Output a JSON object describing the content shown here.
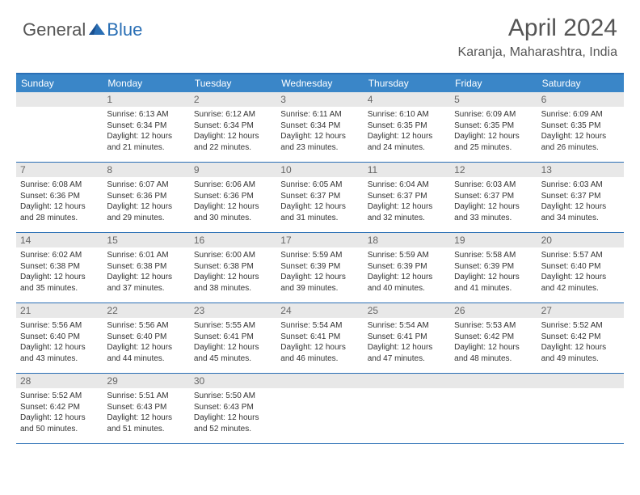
{
  "logo": {
    "general": "General",
    "blue": "Blue"
  },
  "header": {
    "title": "April 2024",
    "subtitle": "Karanja, Maharashtra, India"
  },
  "colors": {
    "header_bar": "#3a86c8",
    "week_border": "#2a6fb5",
    "daynum_bg": "#e8e8e8",
    "text": "#333333",
    "title_text": "#555555"
  },
  "weekdays": [
    "Sunday",
    "Monday",
    "Tuesday",
    "Wednesday",
    "Thursday",
    "Friday",
    "Saturday"
  ],
  "weeks": [
    [
      null,
      {
        "n": "1",
        "sunrise": "6:13 AM",
        "sunset": "6:34 PM",
        "dl": "12 hours and 21 minutes."
      },
      {
        "n": "2",
        "sunrise": "6:12 AM",
        "sunset": "6:34 PM",
        "dl": "12 hours and 22 minutes."
      },
      {
        "n": "3",
        "sunrise": "6:11 AM",
        "sunset": "6:34 PM",
        "dl": "12 hours and 23 minutes."
      },
      {
        "n": "4",
        "sunrise": "6:10 AM",
        "sunset": "6:35 PM",
        "dl": "12 hours and 24 minutes."
      },
      {
        "n": "5",
        "sunrise": "6:09 AM",
        "sunset": "6:35 PM",
        "dl": "12 hours and 25 minutes."
      },
      {
        "n": "6",
        "sunrise": "6:09 AM",
        "sunset": "6:35 PM",
        "dl": "12 hours and 26 minutes."
      }
    ],
    [
      {
        "n": "7",
        "sunrise": "6:08 AM",
        "sunset": "6:36 PM",
        "dl": "12 hours and 28 minutes."
      },
      {
        "n": "8",
        "sunrise": "6:07 AM",
        "sunset": "6:36 PM",
        "dl": "12 hours and 29 minutes."
      },
      {
        "n": "9",
        "sunrise": "6:06 AM",
        "sunset": "6:36 PM",
        "dl": "12 hours and 30 minutes."
      },
      {
        "n": "10",
        "sunrise": "6:05 AM",
        "sunset": "6:37 PM",
        "dl": "12 hours and 31 minutes."
      },
      {
        "n": "11",
        "sunrise": "6:04 AM",
        "sunset": "6:37 PM",
        "dl": "12 hours and 32 minutes."
      },
      {
        "n": "12",
        "sunrise": "6:03 AM",
        "sunset": "6:37 PM",
        "dl": "12 hours and 33 minutes."
      },
      {
        "n": "13",
        "sunrise": "6:03 AM",
        "sunset": "6:37 PM",
        "dl": "12 hours and 34 minutes."
      }
    ],
    [
      {
        "n": "14",
        "sunrise": "6:02 AM",
        "sunset": "6:38 PM",
        "dl": "12 hours and 35 minutes."
      },
      {
        "n": "15",
        "sunrise": "6:01 AM",
        "sunset": "6:38 PM",
        "dl": "12 hours and 37 minutes."
      },
      {
        "n": "16",
        "sunrise": "6:00 AM",
        "sunset": "6:38 PM",
        "dl": "12 hours and 38 minutes."
      },
      {
        "n": "17",
        "sunrise": "5:59 AM",
        "sunset": "6:39 PM",
        "dl": "12 hours and 39 minutes."
      },
      {
        "n": "18",
        "sunrise": "5:59 AM",
        "sunset": "6:39 PM",
        "dl": "12 hours and 40 minutes."
      },
      {
        "n": "19",
        "sunrise": "5:58 AM",
        "sunset": "6:39 PM",
        "dl": "12 hours and 41 minutes."
      },
      {
        "n": "20",
        "sunrise": "5:57 AM",
        "sunset": "6:40 PM",
        "dl": "12 hours and 42 minutes."
      }
    ],
    [
      {
        "n": "21",
        "sunrise": "5:56 AM",
        "sunset": "6:40 PM",
        "dl": "12 hours and 43 minutes."
      },
      {
        "n": "22",
        "sunrise": "5:56 AM",
        "sunset": "6:40 PM",
        "dl": "12 hours and 44 minutes."
      },
      {
        "n": "23",
        "sunrise": "5:55 AM",
        "sunset": "6:41 PM",
        "dl": "12 hours and 45 minutes."
      },
      {
        "n": "24",
        "sunrise": "5:54 AM",
        "sunset": "6:41 PM",
        "dl": "12 hours and 46 minutes."
      },
      {
        "n": "25",
        "sunrise": "5:54 AM",
        "sunset": "6:41 PM",
        "dl": "12 hours and 47 minutes."
      },
      {
        "n": "26",
        "sunrise": "5:53 AM",
        "sunset": "6:42 PM",
        "dl": "12 hours and 48 minutes."
      },
      {
        "n": "27",
        "sunrise": "5:52 AM",
        "sunset": "6:42 PM",
        "dl": "12 hours and 49 minutes."
      }
    ],
    [
      {
        "n": "28",
        "sunrise": "5:52 AM",
        "sunset": "6:42 PM",
        "dl": "12 hours and 50 minutes."
      },
      {
        "n": "29",
        "sunrise": "5:51 AM",
        "sunset": "6:43 PM",
        "dl": "12 hours and 51 minutes."
      },
      {
        "n": "30",
        "sunrise": "5:50 AM",
        "sunset": "6:43 PM",
        "dl": "12 hours and 52 minutes."
      },
      null,
      null,
      null,
      null
    ]
  ],
  "labels": {
    "sunrise": "Sunrise:",
    "sunset": "Sunset:",
    "daylight": "Daylight:"
  }
}
